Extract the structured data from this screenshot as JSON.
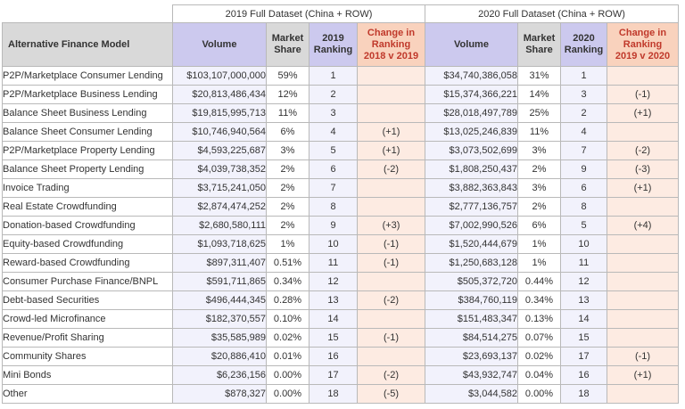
{
  "headers": {
    "group_2019": "2019 Full Dataset (China + ROW)",
    "group_2020": "2020 Full Dataset (China + ROW)",
    "model": "Alternative Finance Model",
    "volume_2019": "Volume",
    "share_2019": "Market\nShare",
    "ranking_2019": "2019\nRanking",
    "change_2019": "Change in\nRanking\n2018 v 2019",
    "volume_2020": "Volume",
    "share_2020": "Market\nShare",
    "ranking_2020": "2020\nRanking",
    "change_2020": "Change in\nRanking\n2019 v 2020"
  },
  "rows": [
    {
      "model": "P2P/Marketplace Consumer Lending",
      "vol19": "$103,107,000,000",
      "share19": "59%",
      "rank19": "1",
      "chg19": "",
      "vol20": "$34,740,386,058",
      "share20": "31%",
      "rank20": "1",
      "chg20": ""
    },
    {
      "model": "P2P/Marketplace Business Lending",
      "vol19": "$20,813,486,434",
      "share19": "12%",
      "rank19": "2",
      "chg19": "",
      "vol20": "$15,374,366,221",
      "share20": "14%",
      "rank20": "3",
      "chg20": "(-1)"
    },
    {
      "model": "Balance Sheet Business Lending",
      "vol19": "$19,815,995,713",
      "share19": "11%",
      "rank19": "3",
      "chg19": "",
      "vol20": "$28,018,497,789",
      "share20": "25%",
      "rank20": "2",
      "chg20": "(+1)"
    },
    {
      "model": "Balance Sheet Consumer Lending",
      "vol19": "$10,746,940,564",
      "share19": "6%",
      "rank19": "4",
      "chg19": "(+1)",
      "vol20": "$13,025,246,839",
      "share20": "11%",
      "rank20": "4",
      "chg20": ""
    },
    {
      "model": "P2P/Marketplace Property Lending",
      "vol19": "$4,593,225,687",
      "share19": "3%",
      "rank19": "5",
      "chg19": "(+1)",
      "vol20": "$3,073,502,699",
      "share20": "3%",
      "rank20": "7",
      "chg20": "(-2)"
    },
    {
      "model": "Balance Sheet Property Lending",
      "vol19": "$4,039,738,352",
      "share19": "2%",
      "rank19": "6",
      "chg19": "(-2)",
      "vol20": "$1,808,250,437",
      "share20": "2%",
      "rank20": "9",
      "chg20": "(-3)"
    },
    {
      "model": "Invoice Trading",
      "vol19": "$3,715,241,050",
      "share19": "2%",
      "rank19": "7",
      "chg19": "",
      "vol20": "$3,882,363,843",
      "share20": "3%",
      "rank20": "6",
      "chg20": "(+1)"
    },
    {
      "model": "Real Estate Crowdfunding",
      "vol19": "$2,874,474,252",
      "share19": "2%",
      "rank19": "8",
      "chg19": "",
      "vol20": "$2,777,136,757",
      "share20": "2%",
      "rank20": "8",
      "chg20": ""
    },
    {
      "model": "Donation-based Crowdfunding",
      "vol19": "$2,680,580,111",
      "share19": "2%",
      "rank19": "9",
      "chg19": "(+3)",
      "vol20": "$7,002,990,526",
      "share20": "6%",
      "rank20": "5",
      "chg20": "(+4)"
    },
    {
      "model": "Equity-based Crowdfunding",
      "vol19": "$1,093,718,625",
      "share19": "1%",
      "rank19": "10",
      "chg19": "(-1)",
      "vol20": "$1,520,444,679",
      "share20": "1%",
      "rank20": "10",
      "chg20": ""
    },
    {
      "model": "Reward-based Crowdfunding",
      "vol19": "$897,311,407",
      "share19": "0.51%",
      "rank19": "11",
      "chg19": "(-1)",
      "vol20": "$1,250,683,128",
      "share20": "1%",
      "rank20": "11",
      "chg20": ""
    },
    {
      "model": "Consumer Purchase Finance/BNPL",
      "vol19": "$591,711,865",
      "share19": "0.34%",
      "rank19": "12",
      "chg19": "",
      "vol20": "$505,372,720",
      "share20": "0.44%",
      "rank20": "12",
      "chg20": ""
    },
    {
      "model": "Debt-based Securities",
      "vol19": "$496,444,345",
      "share19": "0.28%",
      "rank19": "13",
      "chg19": "(-2)",
      "vol20": "$384,760,119",
      "share20": "0.34%",
      "rank20": "13",
      "chg20": ""
    },
    {
      "model": "Crowd-led Microfinance",
      "vol19": "$182,370,557",
      "share19": "0.10%",
      "rank19": "14",
      "chg19": "",
      "vol20": "$151,483,347",
      "share20": "0.13%",
      "rank20": "14",
      "chg20": ""
    },
    {
      "model": "Revenue/Profit Sharing",
      "vol19": "$35,585,989",
      "share19": "0.02%",
      "rank19": "15",
      "chg19": "(-1)",
      "vol20": "$84,514,275",
      "share20": "0.07%",
      "rank20": "15",
      "chg20": ""
    },
    {
      "model": "Community Shares",
      "vol19": "$20,886,410",
      "share19": "0.01%",
      "rank19": "16",
      "chg19": "",
      "vol20": "$23,693,137",
      "share20": "0.02%",
      "rank20": "17",
      "chg20": "(-1)"
    },
    {
      "model": "Mini Bonds",
      "vol19": "$6,236,156",
      "share19": "0.00%",
      "rank19": "17",
      "chg19": "(-2)",
      "vol20": "$43,932,747",
      "share20": "0.04%",
      "rank20": "16",
      "chg20": "(+1)"
    },
    {
      "model": "Other",
      "vol19": "$878,327",
      "share19": "0.00%",
      "rank19": "18",
      "chg19": "(-5)",
      "vol20": "$3,044,582",
      "share20": "0.00%",
      "rank20": "18",
      "chg20": ""
    }
  ]
}
